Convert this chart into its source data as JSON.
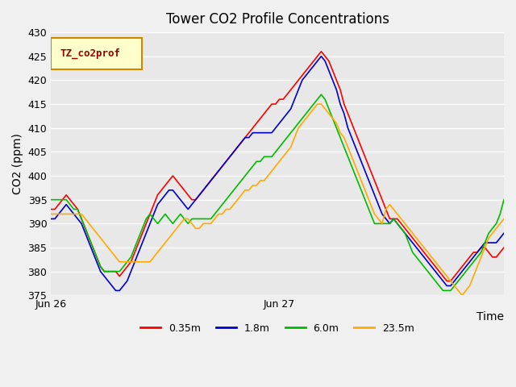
{
  "title": "Tower CO2 Profile Concentrations",
  "ylabel": "CO2 (ppm)",
  "xlabel": "Time",
  "ylim": [
    375,
    430
  ],
  "yticks": [
    375,
    380,
    385,
    390,
    395,
    400,
    405,
    410,
    415,
    420,
    425,
    430
  ],
  "xtick_labels": [
    "Jun 26",
    "Jun 27"
  ],
  "legend_label": "TZ_co2prof",
  "series_labels": [
    "0.35m",
    "1.8m",
    "6.0m",
    "23.5m"
  ],
  "series_colors": [
    "#ff0000",
    "#0000cc",
    "#00bb00",
    "#ffaa00"
  ],
  "background_color": "#e8e8e8",
  "plot_bg_color": "#e8e8e8",
  "grid_color": "#ffffff",
  "n_points": 120,
  "red": [
    393,
    393,
    394,
    395,
    396,
    395,
    394,
    393,
    391,
    389,
    387,
    385,
    383,
    381,
    380,
    380,
    380,
    380,
    379,
    380,
    381,
    382,
    384,
    386,
    388,
    390,
    392,
    394,
    396,
    397,
    398,
    399,
    400,
    399,
    398,
    397,
    396,
    395,
    395,
    396,
    397,
    398,
    399,
    400,
    401,
    402,
    403,
    404,
    405,
    406,
    407,
    408,
    409,
    410,
    411,
    412,
    413,
    414,
    415,
    415,
    416,
    416,
    417,
    418,
    419,
    420,
    421,
    422,
    423,
    424,
    425,
    426,
    425,
    424,
    422,
    420,
    418,
    415,
    413,
    411,
    409,
    407,
    405,
    403,
    401,
    399,
    397,
    395,
    393,
    391,
    391,
    391,
    390,
    389,
    388,
    387,
    386,
    385,
    384,
    383,
    382,
    381,
    380,
    379,
    378,
    378,
    379,
    380,
    381,
    382,
    383,
    384,
    384,
    385,
    385,
    384,
    383,
    383,
    384,
    385
  ],
  "blue": [
    391,
    391,
    392,
    393,
    394,
    393,
    392,
    391,
    390,
    388,
    386,
    384,
    382,
    380,
    379,
    378,
    377,
    376,
    376,
    377,
    378,
    380,
    382,
    384,
    386,
    388,
    390,
    392,
    394,
    395,
    396,
    397,
    397,
    396,
    395,
    394,
    393,
    394,
    395,
    396,
    397,
    398,
    399,
    400,
    401,
    402,
    403,
    404,
    405,
    406,
    407,
    408,
    408,
    409,
    409,
    409,
    409,
    409,
    409,
    410,
    411,
    412,
    413,
    414,
    416,
    418,
    420,
    421,
    422,
    423,
    424,
    425,
    424,
    422,
    420,
    418,
    415,
    413,
    410,
    408,
    406,
    404,
    402,
    400,
    398,
    396,
    394,
    392,
    391,
    390,
    391,
    390,
    389,
    388,
    387,
    386,
    385,
    384,
    383,
    382,
    381,
    380,
    379,
    378,
    377,
    377,
    378,
    379,
    380,
    381,
    382,
    383,
    384,
    385,
    386,
    386,
    386,
    386,
    387,
    388
  ],
  "green": [
    395,
    395,
    395,
    395,
    395,
    394,
    393,
    393,
    391,
    389,
    387,
    385,
    383,
    381,
    380,
    380,
    380,
    380,
    380,
    381,
    382,
    383,
    385,
    387,
    389,
    391,
    392,
    391,
    390,
    391,
    392,
    391,
    390,
    391,
    392,
    391,
    390,
    391,
    391,
    391,
    391,
    391,
    391,
    392,
    393,
    394,
    395,
    396,
    397,
    398,
    399,
    400,
    401,
    402,
    403,
    403,
    404,
    404,
    404,
    405,
    406,
    407,
    408,
    409,
    410,
    411,
    412,
    413,
    414,
    415,
    416,
    417,
    416,
    414,
    412,
    410,
    408,
    406,
    404,
    402,
    400,
    398,
    396,
    394,
    392,
    390,
    390,
    390,
    390,
    390,
    391,
    390,
    389,
    388,
    386,
    384,
    383,
    382,
    381,
    380,
    379,
    378,
    377,
    376,
    376,
    376,
    377,
    378,
    379,
    380,
    381,
    382,
    383,
    384,
    386,
    388,
    389,
    390,
    392,
    395
  ],
  "orange": [
    392,
    392,
    392,
    392,
    392,
    392,
    392,
    392,
    392,
    391,
    390,
    389,
    388,
    387,
    386,
    385,
    384,
    383,
    382,
    382,
    382,
    382,
    382,
    382,
    382,
    382,
    382,
    383,
    384,
    385,
    386,
    387,
    388,
    389,
    390,
    391,
    391,
    390,
    389,
    389,
    390,
    390,
    390,
    391,
    392,
    392,
    393,
    393,
    394,
    395,
    396,
    397,
    397,
    398,
    398,
    399,
    399,
    400,
    401,
    402,
    403,
    404,
    405,
    406,
    408,
    410,
    411,
    412,
    413,
    414,
    415,
    415,
    414,
    413,
    412,
    411,
    409,
    408,
    406,
    404,
    402,
    400,
    398,
    396,
    394,
    392,
    391,
    390,
    393,
    394,
    393,
    392,
    391,
    390,
    389,
    388,
    387,
    386,
    385,
    384,
    383,
    382,
    381,
    380,
    379,
    378,
    377,
    376,
    375,
    376,
    377,
    379,
    381,
    383,
    385,
    387,
    388,
    389,
    390,
    391
  ]
}
